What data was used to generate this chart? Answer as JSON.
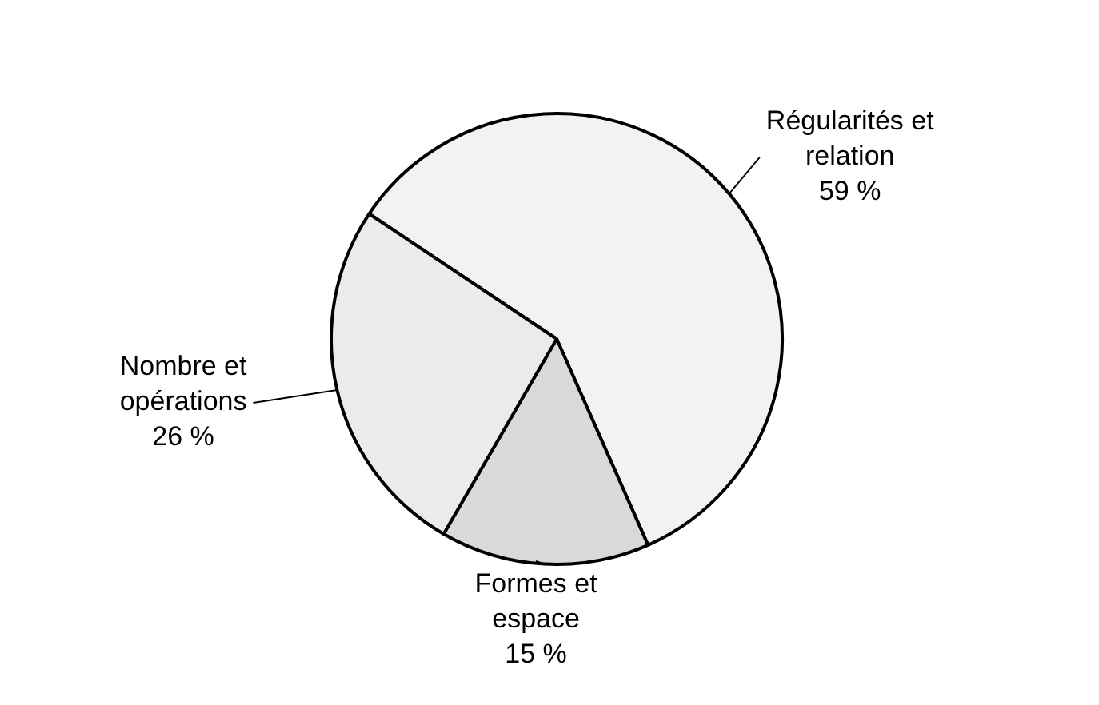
{
  "chart_data": {
    "type": "pie",
    "categories": [
      "Régularités et relation",
      "Formes et espace",
      "Nombre et opérations"
    ],
    "values": [
      59,
      15,
      26
    ],
    "colors": [
      "#f2f2f2",
      "#d9d9d9",
      "#ebebeb"
    ],
    "value_labels": [
      "59 %",
      "15 %",
      "26 %"
    ],
    "legend": false
  }
}
